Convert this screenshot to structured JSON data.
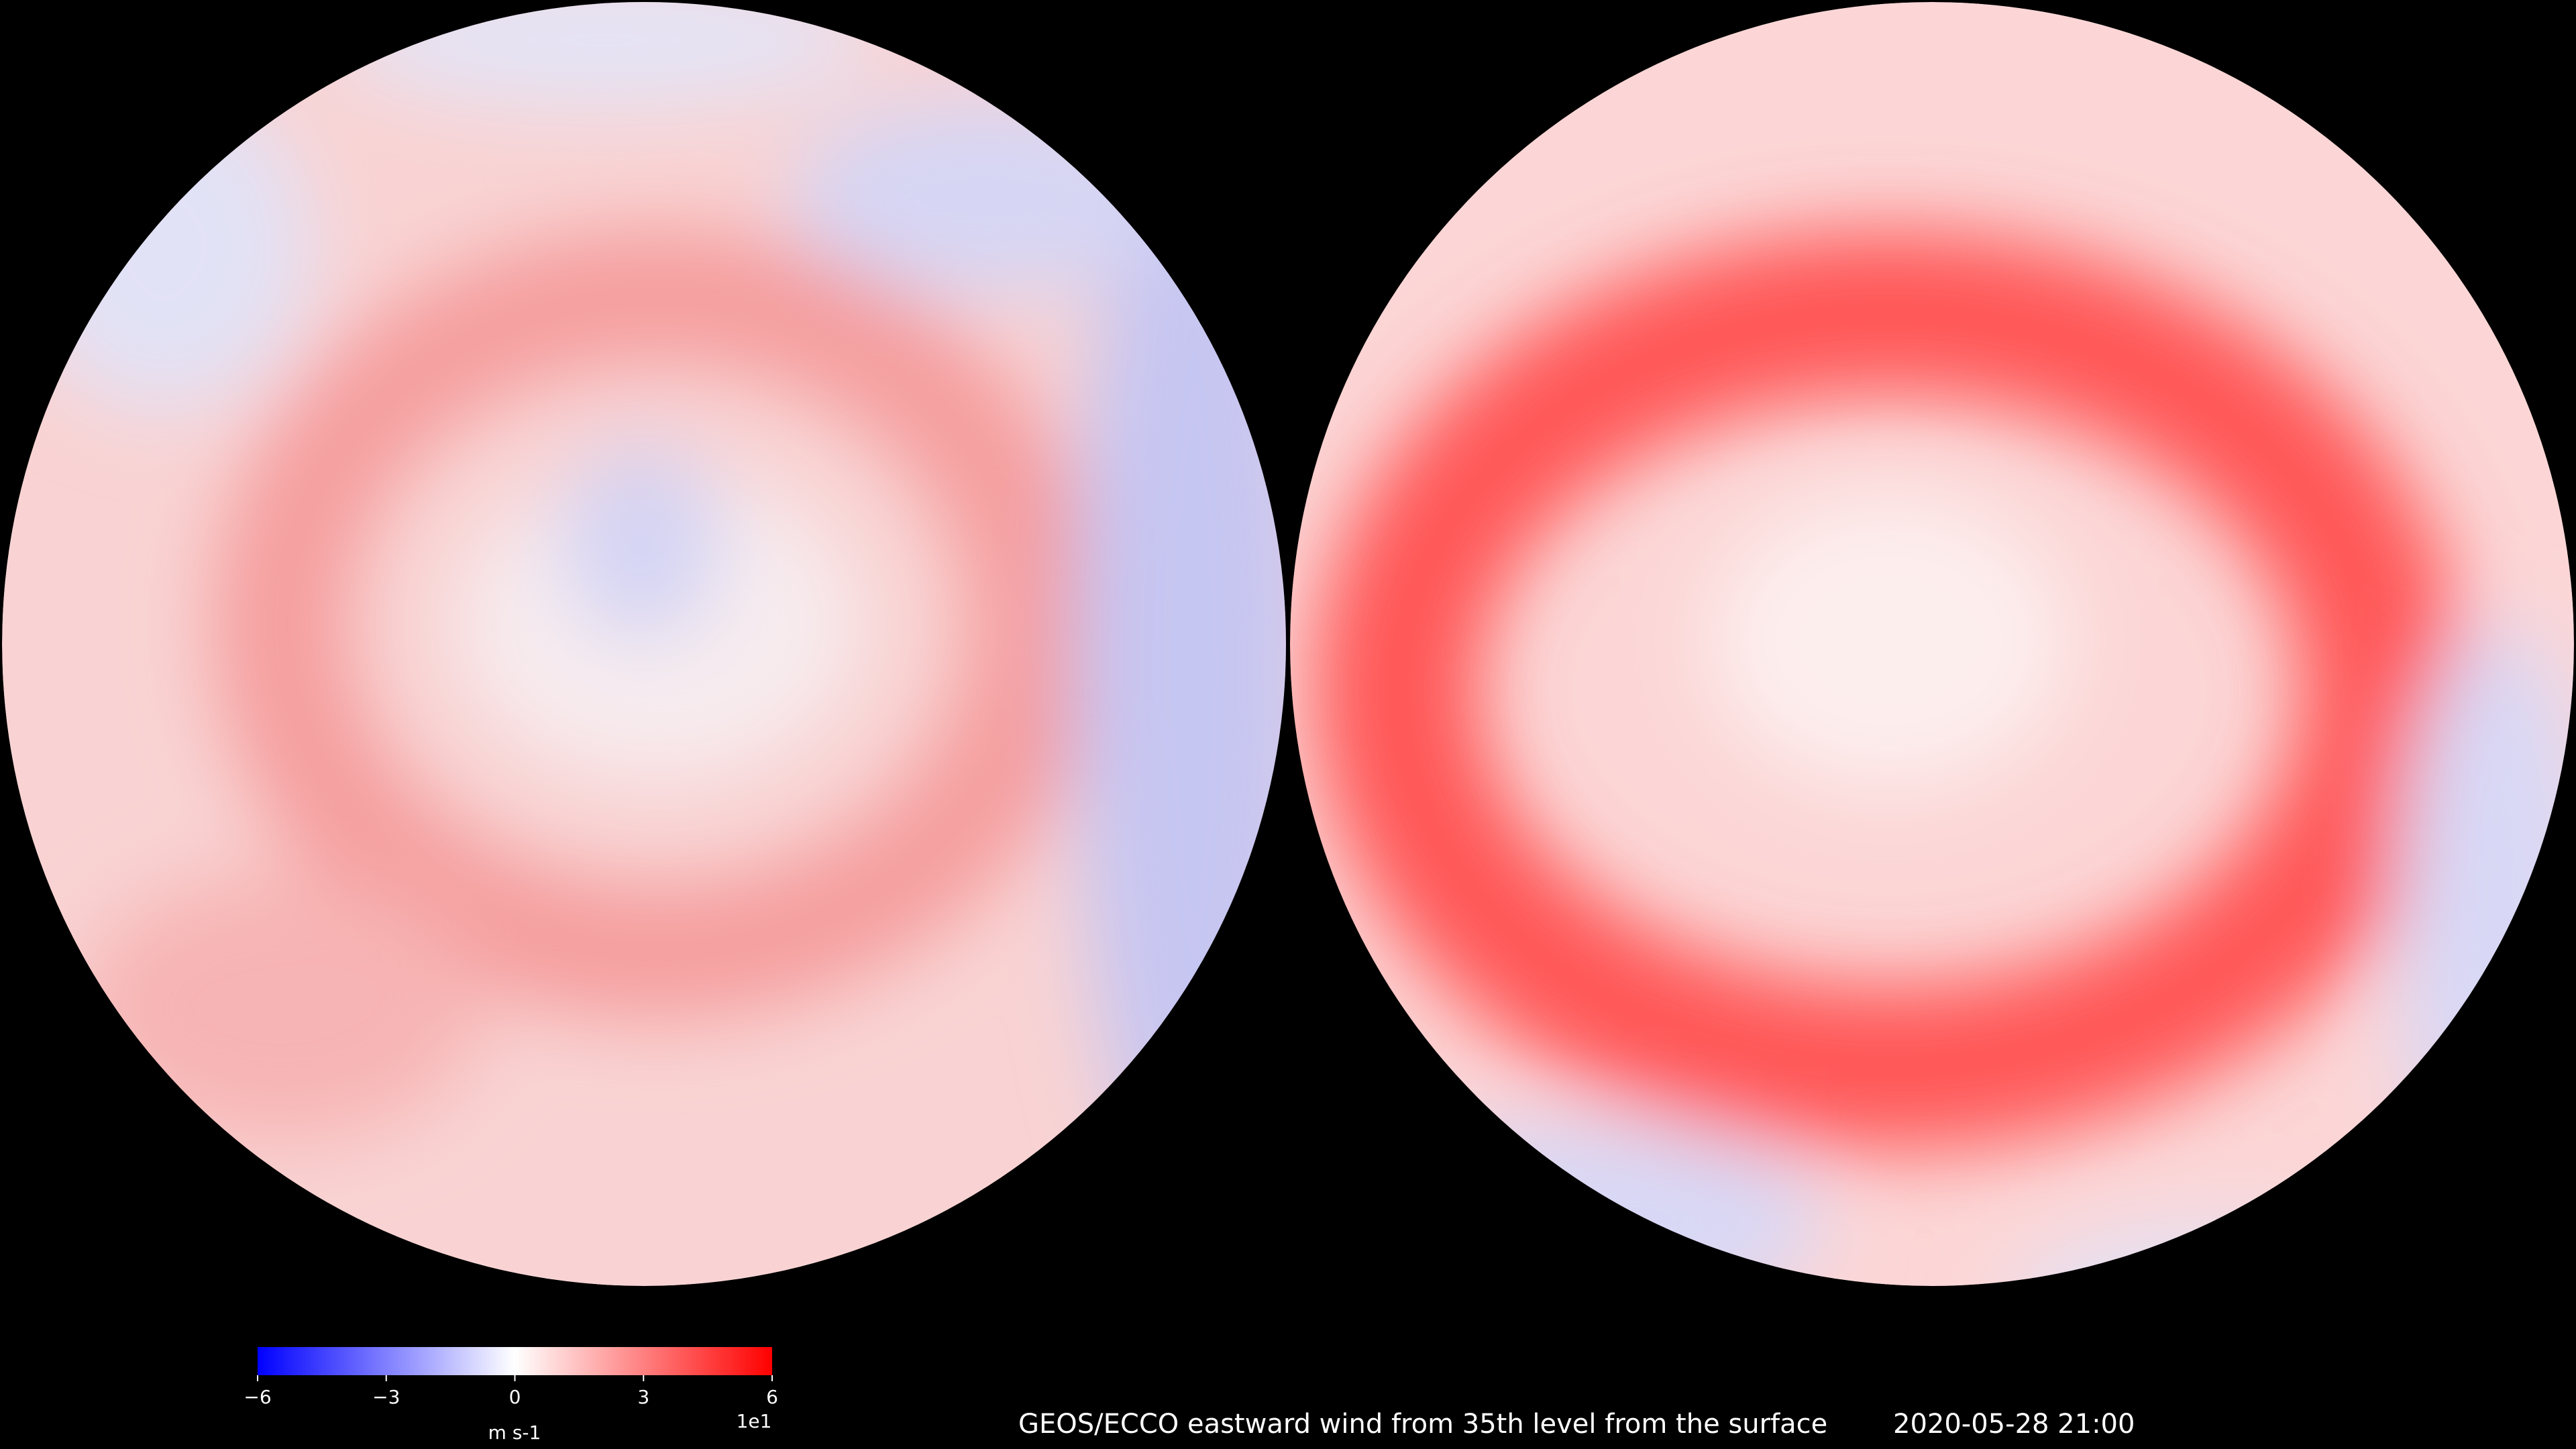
{
  "title": "GEOS/ECCO eastward wind from 35th level from the surface",
  "timestamp": "2020-05-28 21:00",
  "colorbar": {
    "label": "m s-1",
    "scale_label": "1e1",
    "clim": [
      -6,
      6
    ],
    "ticks": [
      {
        "value": -6,
        "label": "−6"
      },
      {
        "value": -3,
        "label": "−3"
      },
      0,
      3,
      6
    ],
    "colormap": [
      "#0000ff",
      "#ffffff",
      "#ff0000"
    ]
  }
}
